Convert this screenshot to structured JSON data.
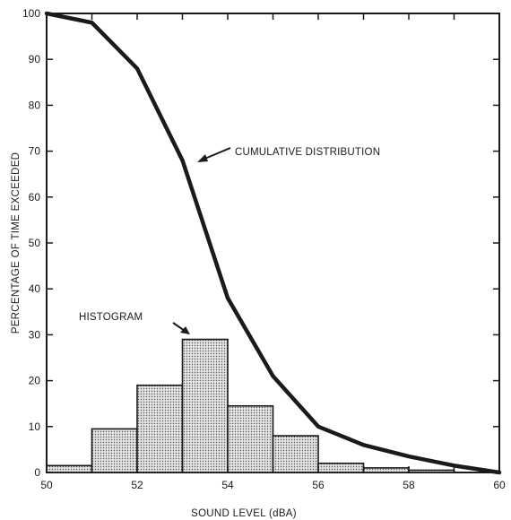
{
  "chart_data": {
    "type": "bar",
    "title": "",
    "xlabel": "SOUND LEVEL (dBA)",
    "ylabel": "PERCENTAGE OF TIME EXCEEDED",
    "xlim": [
      50,
      60
    ],
    "ylim": [
      0,
      100
    ],
    "x_ticks": [
      "50",
      "52",
      "54",
      "56",
      "58",
      "60"
    ],
    "y_ticks": [
      "0",
      "10",
      "20",
      "30",
      "40",
      "50",
      "60",
      "70",
      "80",
      "90",
      "100"
    ],
    "grid": false,
    "histogram": {
      "name": "HISTOGRAM",
      "bins": [
        {
          "from": 50,
          "to": 51,
          "value": 1.5
        },
        {
          "from": 51,
          "to": 52,
          "value": 9.5
        },
        {
          "from": 52,
          "to": 53,
          "value": 19
        },
        {
          "from": 53,
          "to": 54,
          "value": 29
        },
        {
          "from": 54,
          "to": 55,
          "value": 14.5
        },
        {
          "from": 55,
          "to": 56,
          "value": 8
        },
        {
          "from": 56,
          "to": 57,
          "value": 2
        },
        {
          "from": 57,
          "to": 58,
          "value": 1
        },
        {
          "from": 58,
          "to": 59,
          "value": 0.5
        }
      ]
    },
    "cumulative": {
      "name": "CUMULATIVE DISTRIBUTION",
      "x": [
        50,
        51,
        52,
        53,
        54,
        55,
        56,
        57,
        58,
        59,
        60
      ],
      "y": [
        100,
        98,
        88,
        68,
        38,
        21,
        10,
        6,
        3.5,
        1.5,
        0
      ]
    },
    "annotations": [
      "CUMULATIVE DISTRIBUTION",
      "HISTOGRAM"
    ],
    "colors": {
      "line": "#1a1a1a",
      "bar_fill": "#d6d6d6",
      "bar_stroke": "#1a1a1a"
    }
  }
}
